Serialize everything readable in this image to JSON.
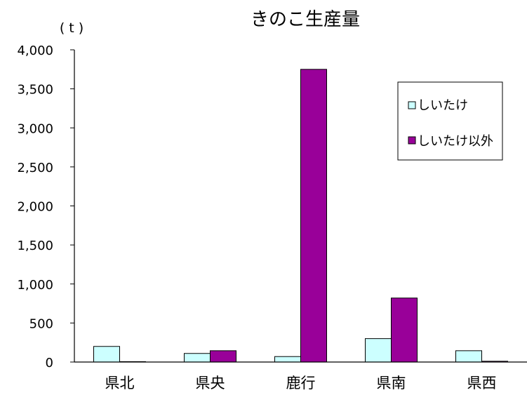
{
  "chart_data": {
    "type": "bar",
    "title": "きのこ生産量",
    "unit_label": "( t )",
    "categories": [
      "県北",
      "県央",
      "鹿行",
      "県南",
      "県西"
    ],
    "series": [
      {
        "name": "しいたけ",
        "values": [
          200,
          110,
          70,
          300,
          145
        ],
        "color": "#ccffff"
      },
      {
        "name": "しいたけ以外",
        "values": [
          5,
          145,
          3750,
          820,
          10
        ],
        "color": "#990099"
      }
    ],
    "ylim": [
      0,
      4000
    ],
    "yticks": [
      "0",
      "500",
      "1,000",
      "1,500",
      "2,000",
      "2,500",
      "3,000",
      "3,500",
      "4,000"
    ],
    "ytick_values": [
      0,
      500,
      1000,
      1500,
      2000,
      2500,
      3000,
      3500,
      4000
    ],
    "grid": false,
    "legend_position": "top-right"
  }
}
